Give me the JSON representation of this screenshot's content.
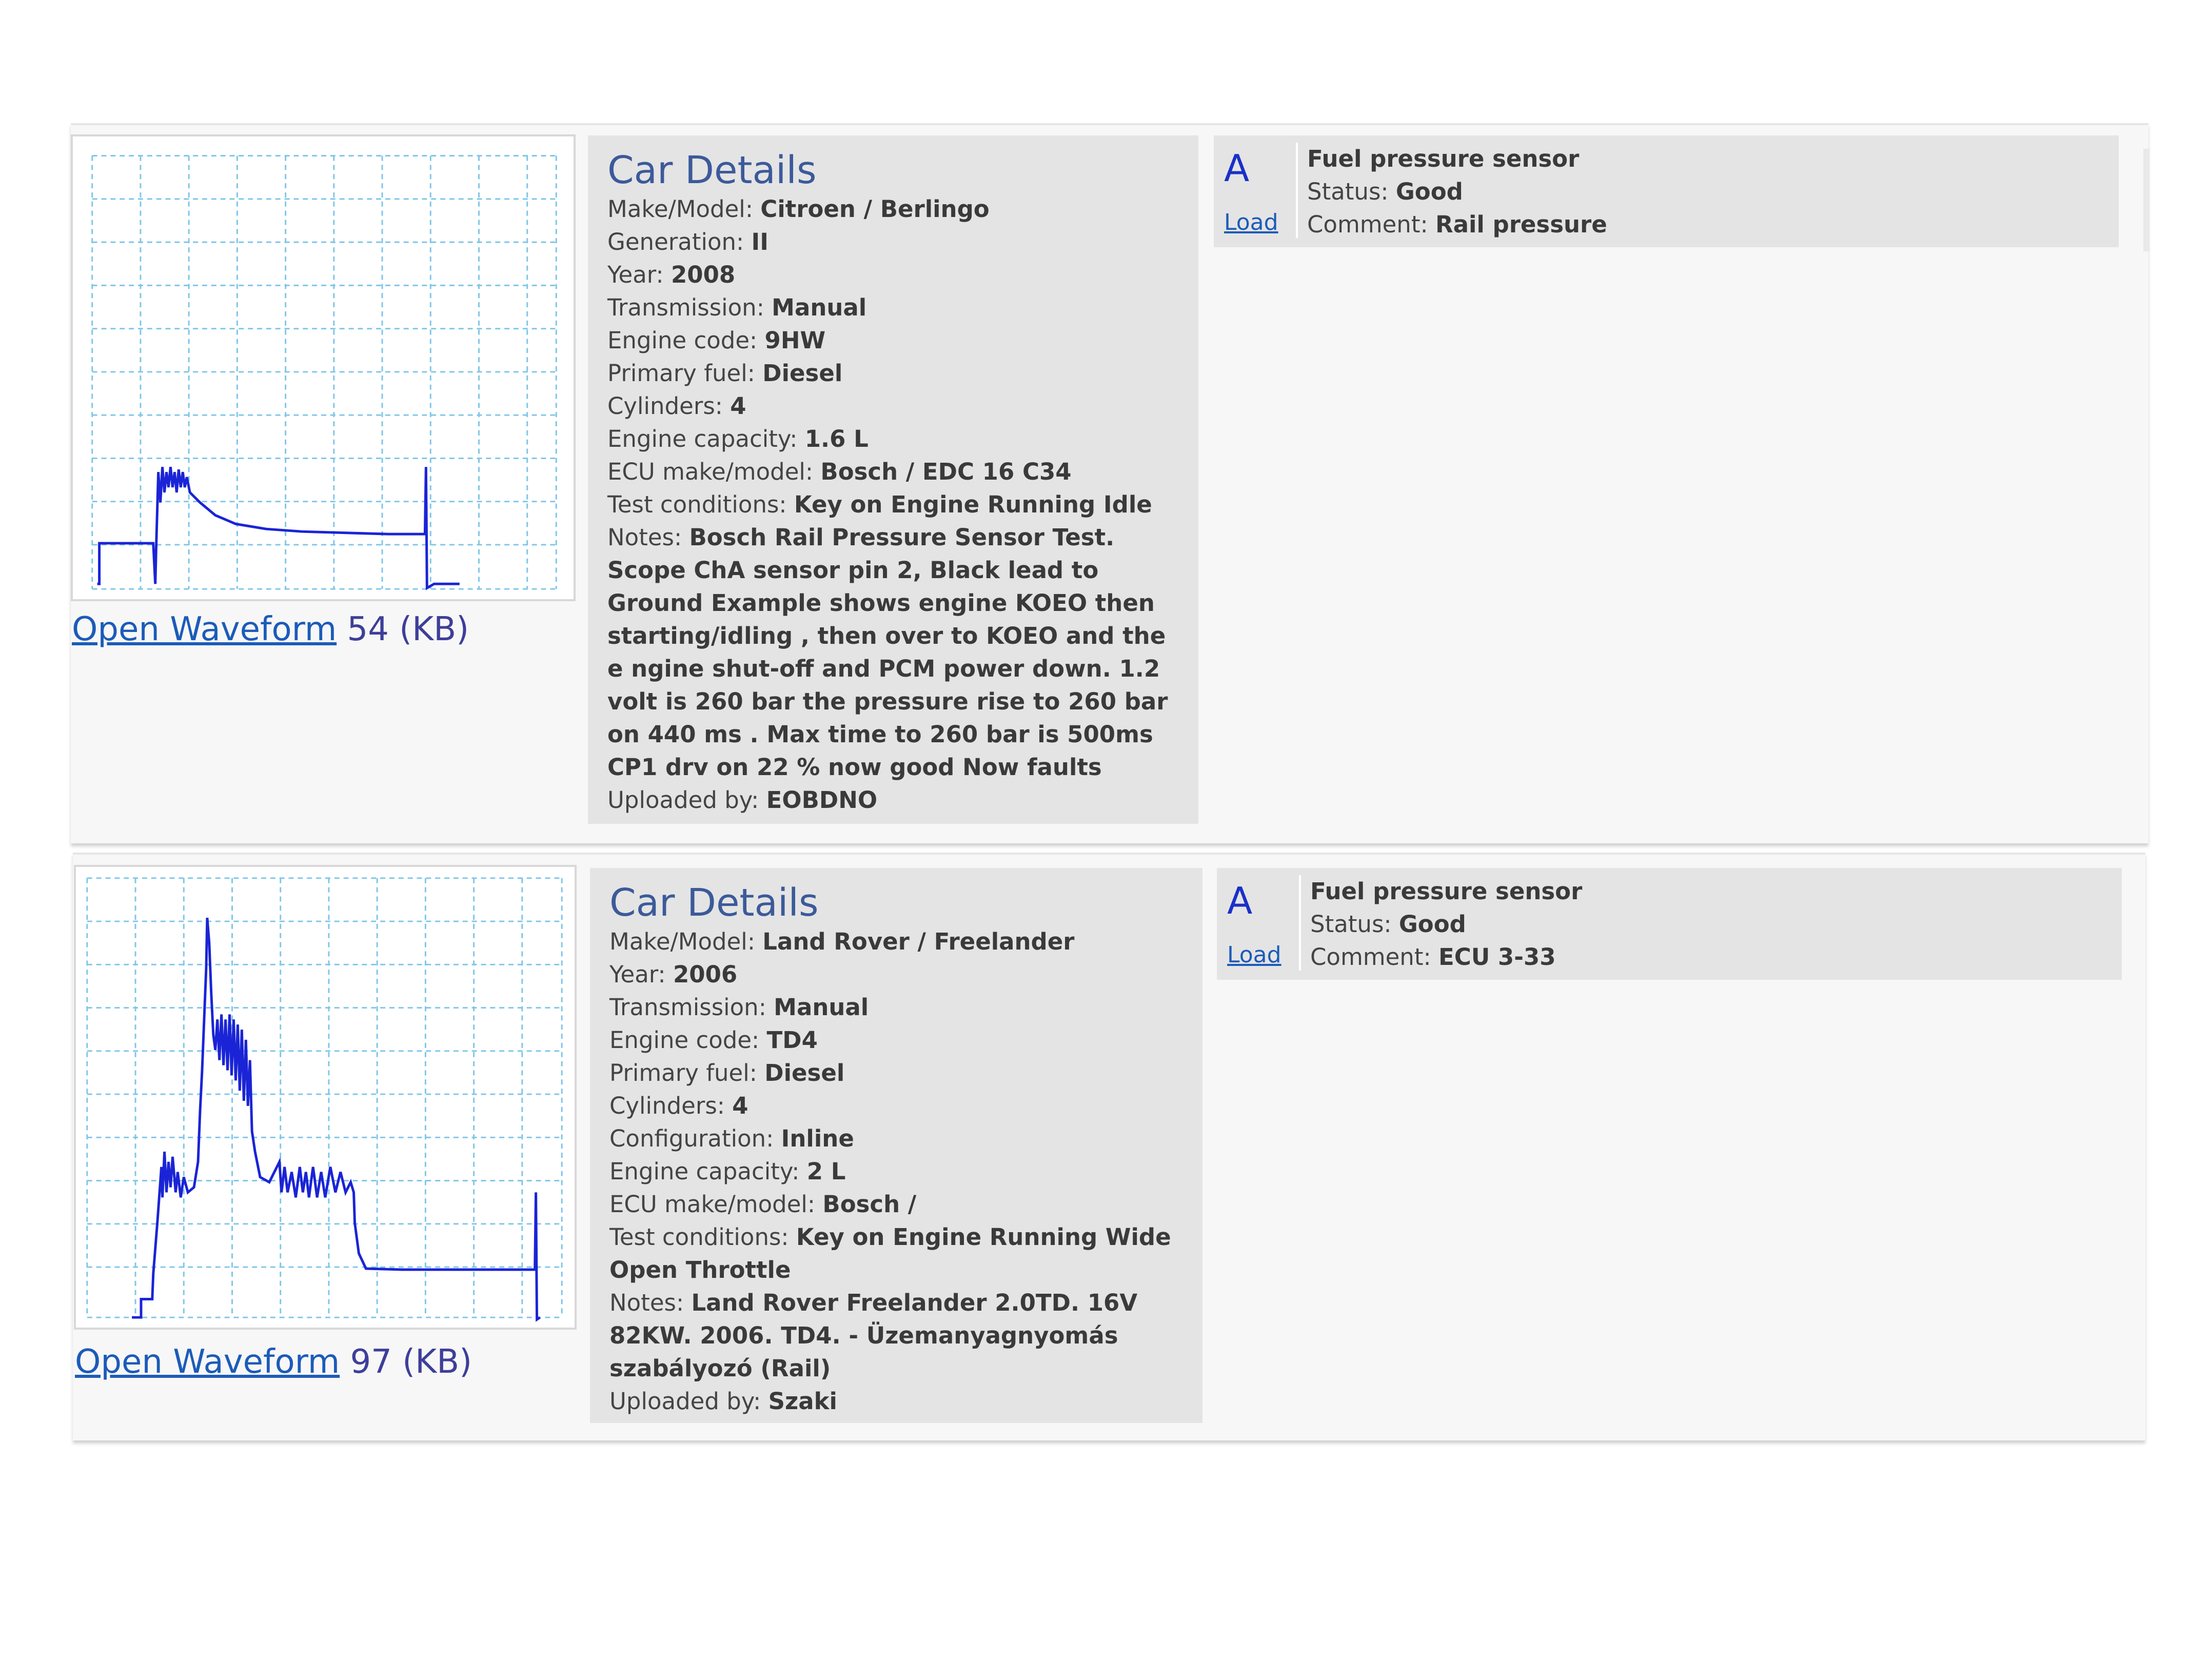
{
  "records": [
    {
      "open_label": "Open Waveform",
      "size": "54 (KB)",
      "details_title": "Car Details",
      "details": [
        {
          "k": "Make/Model:",
          "v": "Citroen / Berlingo"
        },
        {
          "k": "Generation:",
          "v": "II"
        },
        {
          "k": "Year:",
          "v": "2008"
        },
        {
          "k": "Transmission:",
          "v": "Manual"
        },
        {
          "k": "Engine code:",
          "v": "9HW"
        },
        {
          "k": "Primary fuel:",
          "v": "Diesel"
        },
        {
          "k": "Cylinders:",
          "v": "4"
        },
        {
          "k": "Engine capacity:",
          "v": "1.6 L"
        },
        {
          "k": "ECU make/model:",
          "v": "Bosch / EDC 16 C34"
        },
        {
          "k": "Test conditions:",
          "v": "Key on Engine Running Idle"
        }
      ],
      "notes_label": "Notes:",
      "notes_lines": [
        "Bosch Rail Pressure Sensor Test.",
        "Scope ChA sensor pin 2, Black lead to",
        "Ground Example shows engine KOEO then",
        "starting/idling , then over to KOEO and the",
        "e ngine shut-off and PCM power down. 1.2",
        "volt is 260 bar the pressure rise to 260 bar",
        "on 440 ms . Max time to 260 bar is 500ms",
        "CP1 drv on 22 % now good Now faults"
      ],
      "uploaded_label": "Uploaded by:",
      "uploaded_by": "EOBDNO",
      "sensor": {
        "channel": "A",
        "load_label": "Load",
        "name": "Fuel pressure sensor",
        "status_label": "Status:",
        "status": "Good",
        "comment_label": "Comment:",
        "comment": "Rail pressure"
      }
    },
    {
      "open_label": "Open Waveform",
      "size": "97 (KB)",
      "details_title": "Car Details",
      "details": [
        {
          "k": "Make/Model:",
          "v": "Land Rover / Freelander"
        },
        {
          "k": "Year:",
          "v": "2006"
        },
        {
          "k": "Transmission:",
          "v": "Manual"
        },
        {
          "k": "Engine code:",
          "v": "TD4"
        },
        {
          "k": "Primary fuel:",
          "v": "Diesel"
        },
        {
          "k": "Cylinders:",
          "v": "4"
        },
        {
          "k": "Configuration:",
          "v": "Inline"
        },
        {
          "k": "Engine capacity:",
          "v": "2 L"
        },
        {
          "k": "ECU make/model:",
          "v": "Bosch /"
        }
      ],
      "test_label": "Test conditions:",
      "test_lines": [
        "Key on Engine Running Wide",
        "Open Throttle"
      ],
      "notes_label": "Notes:",
      "notes_lines": [
        "Land Rover Freelander 2.0TD. 16V",
        "82KW. 2006. TD4. - Üzemanyagnyomás",
        "szabályozó (Rail)"
      ],
      "uploaded_label": "Uploaded by:",
      "uploaded_by": "Szaki",
      "sensor": {
        "channel": "A",
        "load_label": "Load",
        "name": "Fuel pressure sensor",
        "status_label": "Status:",
        "status": "Good",
        "comment_label": "Comment:",
        "comment": "ECU 3-33"
      }
    }
  ],
  "colors": {
    "trace": "#1a24d6",
    "grid": "#7fc6e8",
    "title": "#3c5a9a",
    "link": "#1c5bb9"
  }
}
